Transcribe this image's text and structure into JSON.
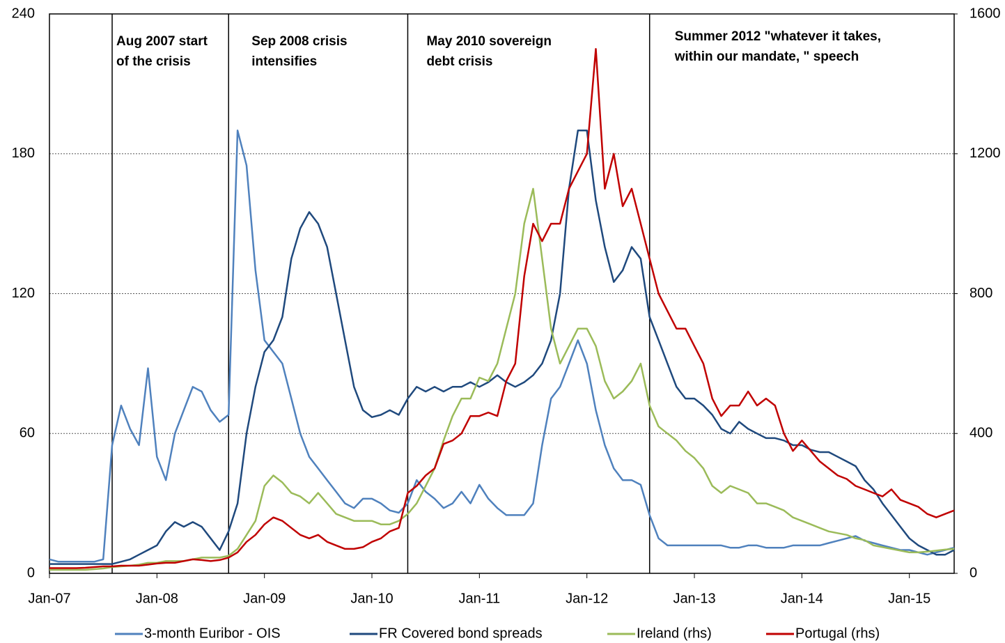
{
  "chart_data": {
    "type": "line",
    "x": [
      "2007-01",
      "2007-02",
      "2007-03",
      "2007-04",
      "2007-05",
      "2007-06",
      "2007-07",
      "2007-08",
      "2007-09",
      "2007-10",
      "2007-11",
      "2007-12",
      "2008-01",
      "2008-02",
      "2008-03",
      "2008-04",
      "2008-05",
      "2008-06",
      "2008-07",
      "2008-08",
      "2008-09",
      "2008-10",
      "2008-11",
      "2008-12",
      "2009-01",
      "2009-02",
      "2009-03",
      "2009-04",
      "2009-05",
      "2009-06",
      "2009-07",
      "2009-08",
      "2009-09",
      "2009-10",
      "2009-11",
      "2009-12",
      "2010-01",
      "2010-02",
      "2010-03",
      "2010-04",
      "2010-05",
      "2010-06",
      "2010-07",
      "2010-08",
      "2010-09",
      "2010-10",
      "2010-11",
      "2010-12",
      "2011-01",
      "2011-02",
      "2011-03",
      "2011-04",
      "2011-05",
      "2011-06",
      "2011-07",
      "2011-08",
      "2011-09",
      "2011-10",
      "2011-11",
      "2011-12",
      "2012-01",
      "2012-02",
      "2012-03",
      "2012-04",
      "2012-05",
      "2012-06",
      "2012-07",
      "2012-08",
      "2012-09",
      "2012-10",
      "2012-11",
      "2012-12",
      "2013-01",
      "2013-02",
      "2013-03",
      "2013-04",
      "2013-05",
      "2013-06",
      "2013-07",
      "2013-08",
      "2013-09",
      "2013-10",
      "2013-11",
      "2013-12",
      "2014-01",
      "2014-02",
      "2014-03",
      "2014-04",
      "2014-05",
      "2014-06",
      "2014-07",
      "2014-08",
      "2014-09",
      "2014-10",
      "2014-11",
      "2014-12",
      "2015-01",
      "2015-02",
      "2015-03",
      "2015-04",
      "2015-05",
      "2015-06"
    ],
    "xlim": [
      "2007-01",
      "2015-06"
    ],
    "xticks": [
      {
        "value": "2007-01",
        "label": "Jan-07"
      },
      {
        "value": "2008-01",
        "label": "Jan-08"
      },
      {
        "value": "2009-01",
        "label": "Jan-09"
      },
      {
        "value": "2010-01",
        "label": "Jan-10"
      },
      {
        "value": "2011-01",
        "label": "Jan-11"
      },
      {
        "value": "2012-01",
        "label": "Jan-12"
      },
      {
        "value": "2013-01",
        "label": "Jan-13"
      },
      {
        "value": "2014-01",
        "label": "Jan-14"
      },
      {
        "value": "2015-01",
        "label": "Jan-15"
      }
    ],
    "ylim": [
      0,
      240
    ],
    "yticks": [
      0,
      60,
      120,
      180,
      240
    ],
    "y2lim": [
      0,
      1600
    ],
    "y2ticks": [
      0,
      400,
      800,
      1200,
      1600
    ],
    "grid": true,
    "legend": "bottom",
    "events": [
      {
        "x": "2007-08",
        "label": [
          "Aug 2007 start",
          "of the crisis"
        ]
      },
      {
        "x": "2008-09",
        "label": [
          "Sep 2008 crisis",
          "intensifies"
        ]
      },
      {
        "x": "2010-05",
        "label": [
          "May 2010 sovereign",
          "debt crisis"
        ]
      },
      {
        "x": "2012-08",
        "label": [
          "Summer 2012 \"whatever it takes,",
          "within our mandate, \" speech"
        ]
      }
    ],
    "series": [
      {
        "name": "3-month Euribor - OIS",
        "color": "#4f81bd",
        "axis": "y",
        "values": [
          6,
          5,
          5,
          5,
          5,
          5,
          6,
          55,
          72,
          62,
          55,
          88,
          50,
          40,
          60,
          70,
          80,
          78,
          70,
          65,
          68,
          190,
          175,
          130,
          100,
          95,
          90,
          75,
          60,
          50,
          45,
          40,
          35,
          30,
          28,
          32,
          32,
          30,
          27,
          26,
          30,
          40,
          35,
          32,
          28,
          30,
          35,
          30,
          38,
          32,
          28,
          25,
          25,
          25,
          30,
          55,
          75,
          80,
          90,
          100,
          90,
          70,
          55,
          45,
          40,
          40,
          38,
          25,
          15,
          12,
          12,
          12,
          12,
          12,
          12,
          12,
          11,
          11,
          12,
          12,
          11,
          11,
          11,
          12,
          12,
          12,
          12,
          13,
          14,
          15,
          16,
          14,
          13,
          12,
          11,
          10,
          10,
          9,
          8,
          9,
          10,
          11
        ]
      },
      {
        "name": "FR Covered bond spreads",
        "color": "#1f497d",
        "axis": "y",
        "values": [
          4,
          4,
          4,
          4,
          4,
          4,
          4,
          4,
          5,
          6,
          8,
          10,
          12,
          18,
          22,
          20,
          22,
          20,
          15,
          10,
          18,
          30,
          60,
          80,
          95,
          100,
          110,
          135,
          148,
          155,
          150,
          140,
          120,
          100,
          80,
          70,
          67,
          68,
          70,
          68,
          75,
          80,
          78,
          80,
          78,
          80,
          80,
          82,
          80,
          82,
          85,
          82,
          80,
          82,
          85,
          90,
          100,
          120,
          165,
          190,
          190,
          160,
          140,
          125,
          130,
          140,
          135,
          110,
          100,
          90,
          80,
          75,
          75,
          72,
          68,
          62,
          60,
          65,
          62,
          60,
          58,
          58,
          57,
          55,
          55,
          53,
          52,
          52,
          50,
          48,
          46,
          40,
          36,
          30,
          25,
          20,
          15,
          12,
          10,
          8,
          8,
          10
        ]
      },
      {
        "name": "Ireland (rhs)",
        "color": "#9bbb59",
        "axis": "y2",
        "values": [
          10,
          10,
          10,
          10,
          10,
          12,
          14,
          18,
          20,
          22,
          25,
          30,
          30,
          35,
          35,
          35,
          40,
          45,
          45,
          45,
          50,
          70,
          110,
          150,
          250,
          280,
          260,
          230,
          220,
          200,
          230,
          200,
          170,
          160,
          150,
          150,
          150,
          140,
          140,
          150,
          170,
          200,
          250,
          300,
          380,
          450,
          500,
          500,
          560,
          550,
          600,
          700,
          800,
          1000,
          1100,
          900,
          700,
          600,
          650,
          700,
          700,
          650,
          550,
          500,
          520,
          550,
          600,
          480,
          420,
          400,
          380,
          350,
          330,
          300,
          250,
          230,
          250,
          240,
          230,
          200,
          200,
          190,
          180,
          160,
          150,
          140,
          130,
          120,
          115,
          110,
          100,
          95,
          80,
          75,
          70,
          65,
          60,
          60,
          62,
          65,
          68,
          70
        ]
      },
      {
        "name": "Portugal (rhs)",
        "color": "#c00000",
        "axis": "y2",
        "values": [
          15,
          15,
          15,
          15,
          16,
          18,
          20,
          20,
          22,
          22,
          22,
          25,
          28,
          30,
          30,
          35,
          40,
          38,
          35,
          38,
          45,
          60,
          90,
          110,
          140,
          160,
          150,
          130,
          110,
          100,
          110,
          90,
          80,
          70,
          70,
          75,
          90,
          100,
          120,
          130,
          230,
          250,
          280,
          300,
          370,
          380,
          400,
          450,
          450,
          460,
          450,
          550,
          600,
          850,
          1000,
          950,
          1000,
          1000,
          1100,
          1150,
          1200,
          1500,
          1100,
          1200,
          1050,
          1100,
          1000,
          900,
          800,
          750,
          700,
          700,
          650,
          600,
          500,
          450,
          480,
          480,
          520,
          480,
          500,
          480,
          400,
          350,
          380,
          350,
          320,
          300,
          280,
          270,
          250,
          240,
          230,
          220,
          240,
          210,
          200,
          190,
          170,
          160,
          170,
          180
        ]
      }
    ]
  }
}
